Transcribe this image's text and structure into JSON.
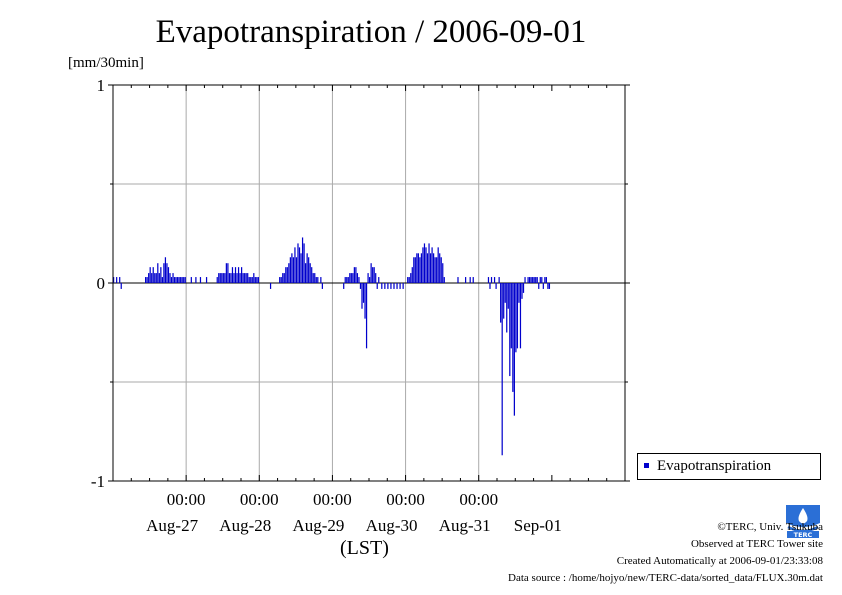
{
  "title": "Evapotranspiration / 2006-09-01",
  "unit_label": "[mm/30min]",
  "x_unit_label": "(LST)",
  "legend_label": "Evapotranspiration",
  "credits": {
    "copyright": "©TERC, Univ. Tsukuba",
    "site": "Observed at TERC Tower site",
    "created": "Created Automatically at 2006-09-01/23:33:08",
    "source": "Data source : /home/hojyo/new/TERC-data/sorted_data/FLUX.30m.dat"
  },
  "colors": {
    "series": "#0000cc",
    "grid": "#aaaaaa"
  },
  "chart_data": {
    "type": "bar",
    "x_range": [
      "2006-08-26 00:00",
      "2006-09-02 00:00"
    ],
    "ylim": [
      -1,
      1
    ],
    "yticks": [
      "1",
      "0",
      "-1"
    ],
    "ytick_values": [
      1,
      0,
      -1
    ],
    "y_minor_grid": [
      0.5,
      -0.5
    ],
    "xticks": [
      "00:00",
      "00:00",
      "00:00",
      "00:00",
      "00:00"
    ],
    "xtick_times": [
      "2006-08-27 00:00",
      "2006-08-28 00:00",
      "2006-08-29 00:00",
      "2006-08-30 00:00",
      "2006-08-31 00:00"
    ],
    "day_labels": [
      "Aug-27",
      "Aug-28",
      "Aug-29",
      "Aug-30",
      "Aug-31",
      "Sep-01"
    ],
    "day_label_times": [
      "2006-08-27 00:00",
      "2006-08-28 00:00",
      "2006-08-29 00:00",
      "2006-08-30 00:00",
      "2006-08-31 00:00",
      "2006-09-01 00:00"
    ],
    "grid": true,
    "legend_position": "bottom-right outside",
    "series": [
      {
        "name": "Evapotranspiration",
        "start": "2006-08-26 00:00",
        "step_minutes": 30,
        "values": [
          0.03,
          0,
          0.03,
          0,
          0.03,
          -0.03,
          0,
          0,
          0,
          0,
          0,
          0,
          0,
          0,
          0,
          0,
          0,
          0,
          0,
          0,
          0,
          0.03,
          0.03,
          0.05,
          0.08,
          0.05,
          0.08,
          0.05,
          0.05,
          0.1,
          0.05,
          0.08,
          0.03,
          0.1,
          0.13,
          0.1,
          0.08,
          0.05,
          0.03,
          0.05,
          0.03,
          0.03,
          0.03,
          0.03,
          0.03,
          0.03,
          0.03,
          0.03,
          0,
          0,
          0,
          0.03,
          0,
          0,
          0.03,
          0,
          0,
          0.03,
          0,
          0,
          0,
          0.03,
          0,
          0,
          0,
          0,
          0,
          0,
          0.03,
          0.05,
          0.05,
          0.05,
          0.05,
          0.05,
          0.1,
          0.1,
          0.05,
          0.05,
          0.08,
          0.05,
          0.08,
          0.05,
          0.08,
          0.05,
          0.08,
          0.05,
          0.05,
          0.05,
          0.05,
          0.03,
          0.03,
          0.03,
          0.05,
          0.03,
          0.03,
          0.03,
          0,
          0,
          0,
          0,
          0,
          0,
          0,
          -0.03,
          0,
          0,
          0,
          0,
          0,
          0.03,
          0.03,
          0.05,
          0.05,
          0.08,
          0.08,
          0.1,
          0.13,
          0.15,
          0.13,
          0.18,
          0.13,
          0.2,
          0.18,
          0.15,
          0.23,
          0.2,
          0.1,
          0.15,
          0.13,
          0.1,
          0.08,
          0.05,
          0.05,
          0.03,
          0.03,
          0,
          0.03,
          -0.03,
          0,
          0,
          0,
          0,
          0,
          0,
          0,
          0,
          0,
          0,
          0,
          0,
          0,
          -0.03,
          0.03,
          0.03,
          0.03,
          0.05,
          0.05,
          0.05,
          0.08,
          0.08,
          0.05,
          0.03,
          -0.03,
          -0.13,
          -0.1,
          -0.18,
          -0.33,
          0.05,
          0.03,
          0.1,
          0.08,
          0.08,
          0.05,
          -0.03,
          0.03,
          0,
          -0.03,
          0,
          -0.03,
          0,
          -0.03,
          0,
          -0.03,
          0,
          -0.03,
          0,
          -0.03,
          0,
          -0.03,
          0,
          -0.03,
          0,
          0,
          0.03,
          0.03,
          0.05,
          0.08,
          0.13,
          0.13,
          0.15,
          0.15,
          0.13,
          0.15,
          0.18,
          0.2,
          0.18,
          0.15,
          0.2,
          0.15,
          0.18,
          0.15,
          0.13,
          0.13,
          0.18,
          0.15,
          0.13,
          0.1,
          0.03,
          0,
          0,
          0,
          0,
          0,
          0,
          0,
          0,
          0.03,
          0,
          0,
          0,
          0,
          0.03,
          0,
          0,
          0.03,
          0,
          0.03,
          0,
          0,
          0,
          0,
          0,
          0,
          0,
          0,
          0,
          0.03,
          -0.03,
          0.03,
          0,
          0.03,
          -0.03,
          0,
          0.03,
          -0.2,
          -0.87,
          -0.18,
          -0.1,
          -0.25,
          -0.13,
          -0.47,
          -0.33,
          -0.55,
          -0.67,
          -0.35,
          -0.33,
          -0.1,
          -0.33,
          -0.08,
          -0.05,
          0.03,
          0,
          0.03,
          0.03,
          0.03,
          0.03,
          0.03,
          0.03,
          0.03,
          -0.03,
          0.03,
          0.03,
          -0.03,
          0.03,
          0.03,
          -0.03,
          -0.03,
          0
        ]
      }
    ]
  }
}
